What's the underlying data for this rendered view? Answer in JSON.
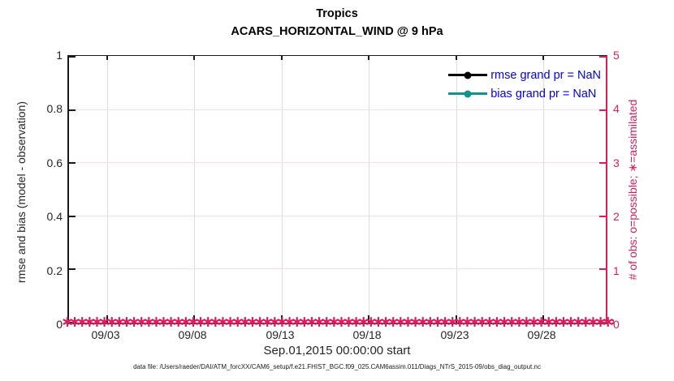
{
  "title": {
    "line1": "Tropics",
    "line2": "ACARS_HORIZONTAL_WIND @ 9 hPa"
  },
  "axes": {
    "left": {
      "label": "rmse and bias (model - observation)",
      "ticks": [
        "0",
        "0.2",
        "0.4",
        "0.6",
        "0.8",
        "1"
      ],
      "range": [
        0,
        1
      ],
      "color": "#262626"
    },
    "right": {
      "label": "# of obs: o=possible; ∗=assimilated",
      "ticks": [
        "0",
        "1",
        "2",
        "3",
        "4",
        "5"
      ],
      "range": [
        0,
        5
      ],
      "color": "#d81e5f"
    },
    "x": {
      "ticks": [
        "09/03",
        "09/08",
        "09/13",
        "09/18",
        "09/23",
        "09/28"
      ],
      "label": "Sep.01,2015 00:00:00 start"
    }
  },
  "legend": [
    {
      "label": "rmse grand pr = NaN",
      "color": "#000000"
    },
    {
      "label": "bias grand pr = NaN",
      "color": "#12948a"
    }
  ],
  "markers": {
    "glyph": "∗",
    "color": "#d81e5f",
    "meaning": "assimilated observation count = 0 at every time along y=0"
  },
  "footer": "data file: /Users/raeder/DAI/ATM_forcXX/CAM6_setup/f.e21.FHIST_BGC.f09_025.CAM6assim.011/Diags_NTrS_2015-09/obs_diag_output.nc",
  "chart_data": {
    "type": "line",
    "title": "Tropics",
    "subtitle": "ACARS_HORIZONTAL_WIND @ 9 hPa",
    "xlabel": "Sep.01,2015 00:00:00 start",
    "ylabel_left": "rmse and bias (model - observation)",
    "ylabel_right": "# of obs: o=possible; ∗=assimilated",
    "x_tick_labels": [
      "09/03",
      "09/08",
      "09/13",
      "09/18",
      "09/23",
      "09/28"
    ],
    "x_range_days": [
      "2015-09-01",
      "2015-10-01"
    ],
    "ylim_left": [
      0,
      1
    ],
    "ylim_right": [
      0,
      5
    ],
    "grid": true,
    "legend_position": "upper right inside, no box",
    "series": [
      {
        "name": "rmse grand pr = NaN",
        "axis": "left",
        "color": "#000000",
        "marker": "filled circle",
        "values": "all NaN — no curve drawn"
      },
      {
        "name": "bias grand pr = NaN",
        "axis": "left",
        "color": "#12948a",
        "marker": "filled circle",
        "values": "all NaN — no curve drawn"
      },
      {
        "name": "number of obs assimilated",
        "axis": "right",
        "color": "#d81e5f",
        "marker": "asterisk",
        "values": "constant 0 at every observation time (dense band of ∗ along y=0 spanning full x-range)"
      }
    ]
  }
}
